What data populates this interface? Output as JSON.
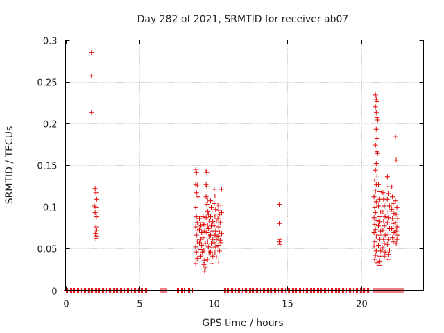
{
  "chart_data": {
    "type": "scatter",
    "title": "Day 282 of 2021, SRMTID for receiver ab07",
    "xlabel": "GPS time / hours",
    "ylabel": "SRMTID / TECUs",
    "xlim": [
      0,
      24.2
    ],
    "ylim": [
      0,
      0.3
    ],
    "x_ticks": [
      0,
      5,
      10,
      15,
      20
    ],
    "x_tick_labels": [
      "0",
      "5",
      "10",
      "15",
      "20"
    ],
    "y_ticks": [
      0,
      0.05,
      0.1,
      0.15,
      0.2,
      0.25,
      0.3
    ],
    "y_tick_labels": [
      "0",
      "0.05",
      "0.1",
      "0.15",
      "0.2",
      "0.25",
      "0.3"
    ],
    "grid": true,
    "marker": "+",
    "series": [
      {
        "name": "SRMTID",
        "color": "#dd0000",
        "zero_segments": [
          [
            0.05,
            5.55
          ],
          [
            6.45,
            6.85
          ],
          [
            7.55,
            8.1
          ],
          [
            8.3,
            8.75
          ],
          [
            10.65,
            20.65
          ],
          [
            20.8,
            22.95
          ]
        ],
        "points": [
          [
            1.75,
            0.285
          ],
          [
            1.75,
            0.257
          ],
          [
            1.75,
            0.213
          ],
          [
            2.0,
            0.122
          ],
          [
            2.05,
            0.117
          ],
          [
            2.1,
            0.109
          ],
          [
            1.95,
            0.101
          ],
          [
            2.05,
            0.099
          ],
          [
            2.0,
            0.093
          ],
          [
            2.08,
            0.088
          ],
          [
            2.05,
            0.076
          ],
          [
            2.1,
            0.072
          ],
          [
            2.02,
            0.068
          ],
          [
            2.08,
            0.065
          ],
          [
            2.05,
            0.062
          ],
          [
            8.8,
            0.145
          ],
          [
            8.85,
            0.141
          ],
          [
            8.8,
            0.127
          ],
          [
            8.9,
            0.126
          ],
          [
            8.85,
            0.117
          ],
          [
            8.95,
            0.112
          ],
          [
            8.8,
            0.099
          ],
          [
            8.85,
            0.088
          ],
          [
            8.9,
            0.081
          ],
          [
            8.8,
            0.076
          ],
          [
            8.95,
            0.072
          ],
          [
            8.85,
            0.066
          ],
          [
            8.9,
            0.059
          ],
          [
            8.8,
            0.052
          ],
          [
            8.85,
            0.046
          ],
          [
            8.9,
            0.038
          ],
          [
            8.8,
            0.032
          ],
          [
            9.05,
            0.086
          ],
          [
            9.1,
            0.081
          ],
          [
            9.15,
            0.077
          ],
          [
            9.05,
            0.073
          ],
          [
            9.2,
            0.069
          ],
          [
            9.1,
            0.064
          ],
          [
            9.15,
            0.061
          ],
          [
            9.05,
            0.057
          ],
          [
            9.2,
            0.054
          ],
          [
            9.1,
            0.049
          ],
          [
            9.25,
            0.046
          ],
          [
            9.15,
            0.041
          ],
          [
            9.3,
            0.088
          ],
          [
            9.35,
            0.079
          ],
          [
            9.4,
            0.071
          ],
          [
            9.3,
            0.063
          ],
          [
            9.45,
            0.056
          ],
          [
            9.35,
            0.048
          ],
          [
            9.4,
            0.036
          ],
          [
            9.35,
            0.031
          ],
          [
            9.45,
            0.027
          ],
          [
            9.4,
            0.023
          ],
          [
            9.5,
            0.143
          ],
          [
            9.55,
            0.141
          ],
          [
            9.5,
            0.127
          ],
          [
            9.55,
            0.124
          ],
          [
            9.5,
            0.112
          ],
          [
            9.6,
            0.108
          ],
          [
            9.55,
            0.103
          ],
          [
            9.6,
            0.095
          ],
          [
            9.65,
            0.091
          ],
          [
            9.5,
            0.087
          ],
          [
            9.7,
            0.083
          ],
          [
            9.6,
            0.078
          ],
          [
            9.65,
            0.074
          ],
          [
            9.55,
            0.069
          ],
          [
            9.7,
            0.064
          ],
          [
            9.6,
            0.059
          ],
          [
            9.65,
            0.052
          ],
          [
            9.7,
            0.045
          ],
          [
            9.6,
            0.037
          ],
          [
            9.8,
            0.107
          ],
          [
            9.85,
            0.099
          ],
          [
            9.9,
            0.094
          ],
          [
            9.8,
            0.088
          ],
          [
            9.95,
            0.082
          ],
          [
            9.85,
            0.077
          ],
          [
            9.9,
            0.071
          ],
          [
            9.8,
            0.066
          ],
          [
            9.95,
            0.061
          ],
          [
            9.85,
            0.056
          ],
          [
            9.9,
            0.051
          ],
          [
            9.8,
            0.046
          ],
          [
            9.95,
            0.041
          ],
          [
            9.9,
            0.032
          ],
          [
            10.05,
            0.121
          ],
          [
            10.1,
            0.113
          ],
          [
            10.05,
            0.104
          ],
          [
            10.15,
            0.097
          ],
          [
            10.1,
            0.089
          ],
          [
            10.2,
            0.083
          ],
          [
            10.05,
            0.077
          ],
          [
            10.15,
            0.071
          ],
          [
            10.1,
            0.066
          ],
          [
            10.2,
            0.061
          ],
          [
            10.05,
            0.057
          ],
          [
            10.15,
            0.052
          ],
          [
            10.1,
            0.045
          ],
          [
            10.2,
            0.04
          ],
          [
            10.3,
            0.102
          ],
          [
            10.35,
            0.096
          ],
          [
            10.4,
            0.091
          ],
          [
            10.3,
            0.086
          ],
          [
            10.45,
            0.081
          ],
          [
            10.35,
            0.076
          ],
          [
            10.4,
            0.07
          ],
          [
            10.3,
            0.065
          ],
          [
            10.45,
            0.06
          ],
          [
            10.35,
            0.054
          ],
          [
            10.4,
            0.047
          ],
          [
            10.35,
            0.034
          ],
          [
            10.55,
            0.121
          ],
          [
            10.5,
            0.102
          ],
          [
            10.55,
            0.093
          ],
          [
            10.5,
            0.083
          ],
          [
            10.55,
            0.068
          ],
          [
            10.5,
            0.057
          ],
          [
            14.45,
            0.103
          ],
          [
            14.45,
            0.08
          ],
          [
            14.5,
            0.061
          ],
          [
            14.45,
            0.058
          ],
          [
            14.5,
            0.055
          ],
          [
            20.95,
            0.234
          ],
          [
            21.0,
            0.229
          ],
          [
            21.05,
            0.226
          ],
          [
            20.95,
            0.22
          ],
          [
            21.0,
            0.213
          ],
          [
            21.05,
            0.207
          ],
          [
            21.1,
            0.204
          ],
          [
            21.0,
            0.193
          ],
          [
            21.05,
            0.182
          ],
          [
            20.95,
            0.174
          ],
          [
            21.05,
            0.166
          ],
          [
            21.1,
            0.164
          ],
          [
            21.0,
            0.152
          ],
          [
            20.95,
            0.144
          ],
          [
            21.05,
            0.137
          ],
          [
            20.9,
            0.132
          ],
          [
            21.0,
            0.127
          ],
          [
            20.95,
            0.119
          ],
          [
            20.85,
            0.112
          ],
          [
            21.0,
            0.106
          ],
          [
            20.9,
            0.099
          ],
          [
            20.95,
            0.093
          ],
          [
            20.85,
            0.087
          ],
          [
            21.05,
            0.084
          ],
          [
            20.9,
            0.079
          ],
          [
            20.95,
            0.073
          ],
          [
            20.85,
            0.069
          ],
          [
            21.0,
            0.064
          ],
          [
            20.9,
            0.058
          ],
          [
            20.85,
            0.053
          ],
          [
            21.0,
            0.047
          ],
          [
            20.95,
            0.042
          ],
          [
            20.9,
            0.037
          ],
          [
            21.05,
            0.033
          ],
          [
            21.15,
            0.127
          ],
          [
            21.2,
            0.118
          ],
          [
            21.25,
            0.109
          ],
          [
            21.15,
            0.101
          ],
          [
            21.3,
            0.094
          ],
          [
            21.2,
            0.088
          ],
          [
            21.25,
            0.082
          ],
          [
            21.15,
            0.077
          ],
          [
            21.3,
            0.071
          ],
          [
            21.2,
            0.066
          ],
          [
            21.25,
            0.061
          ],
          [
            21.15,
            0.054
          ],
          [
            21.3,
            0.047
          ],
          [
            21.2,
            0.041
          ],
          [
            21.25,
            0.035
          ],
          [
            21.2,
            0.03
          ],
          [
            21.45,
            0.117
          ],
          [
            21.5,
            0.109
          ],
          [
            21.55,
            0.101
          ],
          [
            21.45,
            0.094
          ],
          [
            21.6,
            0.088
          ],
          [
            21.5,
            0.083
          ],
          [
            21.55,
            0.077
          ],
          [
            21.45,
            0.072
          ],
          [
            21.6,
            0.066
          ],
          [
            21.5,
            0.061
          ],
          [
            21.55,
            0.056
          ],
          [
            21.45,
            0.051
          ],
          [
            21.6,
            0.046
          ],
          [
            21.55,
            0.041
          ],
          [
            21.75,
            0.136
          ],
          [
            21.8,
            0.124
          ],
          [
            21.85,
            0.116
          ],
          [
            21.75,
            0.109
          ],
          [
            21.9,
            0.101
          ],
          [
            21.8,
            0.094
          ],
          [
            21.85,
            0.087
          ],
          [
            21.75,
            0.081
          ],
          [
            21.9,
            0.074
          ],
          [
            21.8,
            0.067
          ],
          [
            21.85,
            0.061
          ],
          [
            21.75,
            0.055
          ],
          [
            21.9,
            0.048
          ],
          [
            21.85,
            0.043
          ],
          [
            21.8,
            0.037
          ],
          [
            22.05,
            0.124
          ],
          [
            22.1,
            0.112
          ],
          [
            22.15,
            0.104
          ],
          [
            22.05,
            0.097
          ],
          [
            22.2,
            0.092
          ],
          [
            22.1,
            0.086
          ],
          [
            22.15,
            0.08
          ],
          [
            22.05,
            0.074
          ],
          [
            22.2,
            0.069
          ],
          [
            22.1,
            0.063
          ],
          [
            22.15,
            0.058
          ],
          [
            22.3,
            0.184
          ],
          [
            22.35,
            0.156
          ],
          [
            22.3,
            0.107
          ],
          [
            22.4,
            0.099
          ],
          [
            22.35,
            0.091
          ],
          [
            22.45,
            0.086
          ],
          [
            22.3,
            0.081
          ],
          [
            22.4,
            0.076
          ],
          [
            22.35,
            0.071
          ],
          [
            22.45,
            0.066
          ],
          [
            22.4,
            0.061
          ],
          [
            22.35,
            0.056
          ]
        ]
      }
    ]
  }
}
